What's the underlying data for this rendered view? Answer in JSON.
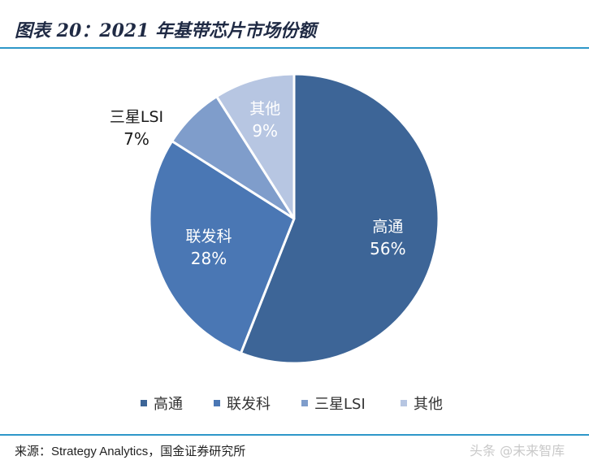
{
  "title": "图表 20：2021 年基带芯片市场份额",
  "source": "来源：Strategy Analytics，国金证券研究所",
  "watermark": "头条 @未来智库",
  "chart_data": {
    "type": "pie",
    "categories": [
      "高通",
      "联发科",
      "三星LSI",
      "其他"
    ],
    "values": [
      56,
      28,
      7,
      9
    ],
    "value_labels": [
      "56%",
      "28%",
      "7%",
      "9%"
    ],
    "colors": [
      "#3d6597",
      "#4a77b4",
      "#7f9dcb",
      "#b7c6e2"
    ],
    "legend_placement": "bottom",
    "start_angle": "12 o'clock",
    "direction": "clockwise"
  }
}
